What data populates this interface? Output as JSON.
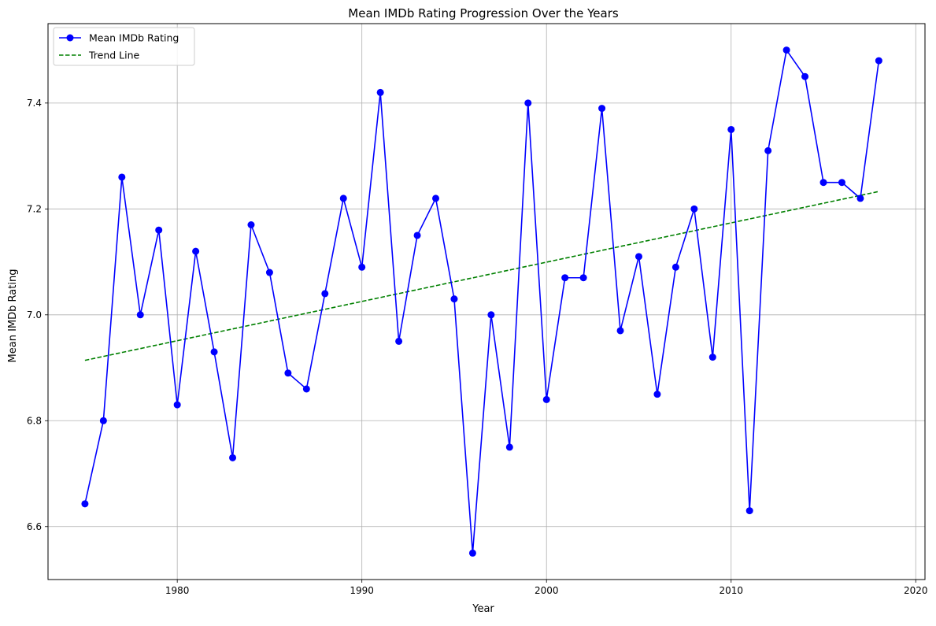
{
  "chart_data": {
    "type": "line",
    "title": "Mean IMDb Rating Progression Over the Years",
    "xlabel": "Year",
    "ylabel": "Mean IMDb Rating",
    "xlim": [
      1973,
      2020.5
    ],
    "ylim": [
      6.5,
      7.55
    ],
    "xticks": [
      1980,
      1990,
      2000,
      2010,
      2020
    ],
    "yticks": [
      6.6,
      6.8,
      7.0,
      7.2,
      7.4
    ],
    "grid": true,
    "legend_position": "top-left",
    "x": [
      1975,
      1976,
      1977,
      1978,
      1979,
      1980,
      1981,
      1982,
      1983,
      1984,
      1985,
      1986,
      1987,
      1988,
      1989,
      1990,
      1991,
      1992,
      1993,
      1994,
      1995,
      1996,
      1997,
      1998,
      1999,
      2000,
      2001,
      2002,
      2003,
      2004,
      2005,
      2006,
      2007,
      2008,
      2009,
      2010,
      2011,
      2012,
      2013,
      2014,
      2015,
      2016,
      2017,
      2018
    ],
    "series": [
      {
        "name": "Mean IMDb Rating",
        "style": "solid-with-markers",
        "color": "#0000ff",
        "values": [
          6.643,
          6.8,
          7.26,
          7.0,
          7.16,
          6.83,
          7.12,
          6.93,
          6.73,
          7.17,
          7.08,
          6.89,
          6.86,
          7.04,
          7.22,
          7.09,
          7.42,
          6.95,
          7.15,
          7.22,
          7.03,
          6.55,
          7.0,
          6.75,
          7.4,
          6.84,
          7.07,
          7.07,
          7.39,
          6.97,
          7.11,
          6.85,
          7.09,
          7.2,
          6.92,
          7.35,
          6.63,
          7.31,
          7.5,
          7.45,
          7.25,
          7.25,
          7.22,
          7.48
        ]
      },
      {
        "name": "Trend Line",
        "style": "dashed",
        "color": "#008000",
        "x": [
          1975,
          2018
        ],
        "values": [
          6.914,
          7.233
        ]
      }
    ]
  }
}
